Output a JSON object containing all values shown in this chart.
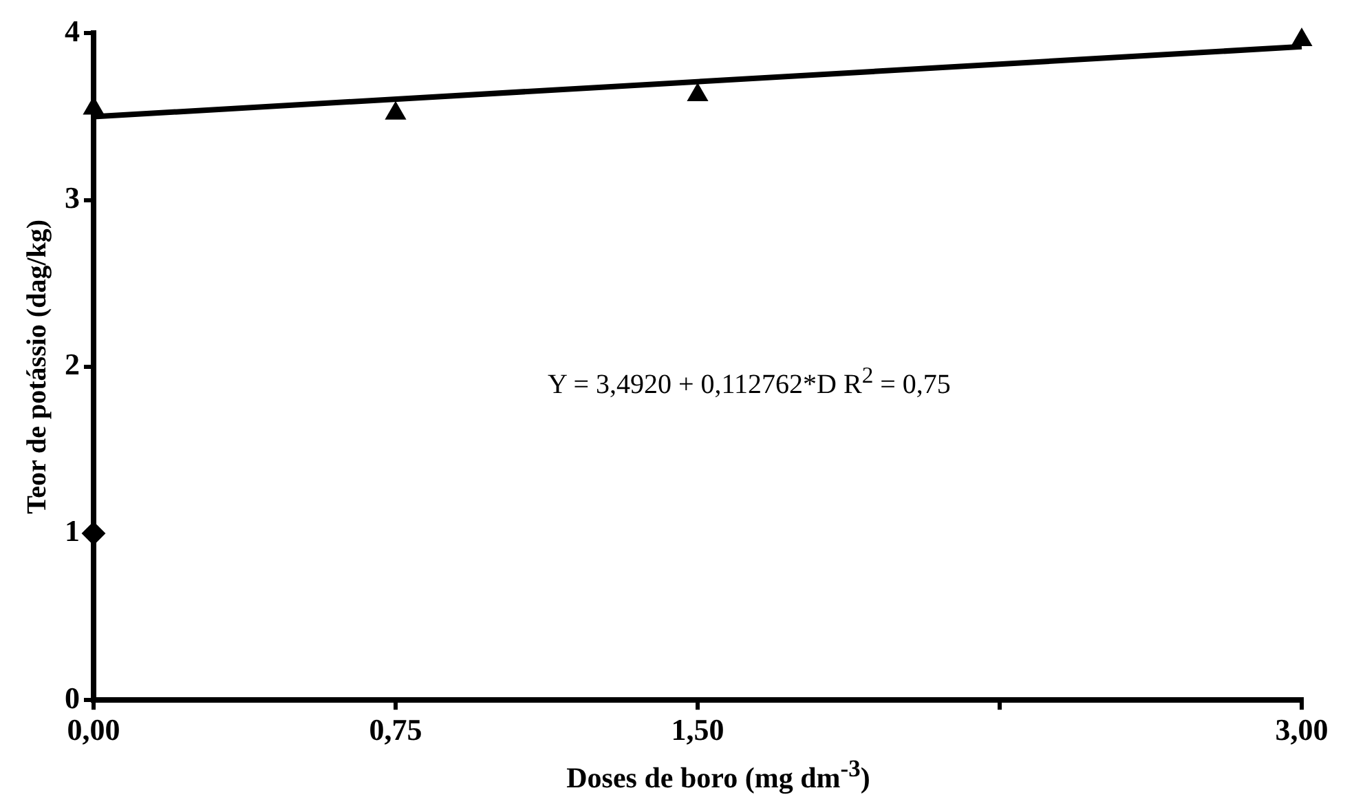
{
  "chart_data": {
    "type": "scatter",
    "xlabel": "Doses de boro (mg dm$^{-3}$)",
    "ylabel": "Teor de potássio (dag/kg)",
    "annotations": [
      "Y = 3,4920 + 0,112762*D R$^{2}$ = 0,75"
    ],
    "xlim": [
      0,
      3
    ],
    "xticks": [
      {
        "value": 0,
        "label": "0,00"
      },
      {
        "value": 0.75,
        "label": "0,75"
      },
      {
        "value": 1.5,
        "label": "1,50"
      },
      {
        "value": 2.25,
        "label": null
      },
      {
        "value": 3,
        "label": "3,00"
      }
    ],
    "ylim": [
      0,
      4
    ],
    "yticks": [
      0,
      1,
      2,
      3,
      4
    ],
    "grid": false,
    "legend": false,
    "series": [
      {
        "type": "scatter",
        "color": "#000000",
        "marker": "triangle",
        "x": [
          0,
          0.75,
          1.5,
          3
        ],
        "values": [
          3.55,
          3.52,
          3.63,
          3.96
        ]
      },
      {
        "type": "scatter",
        "color": "#000000",
        "marker": "diamond",
        "x": [
          0
        ],
        "values": [
          1
        ]
      },
      {
        "type": "line",
        "color": "#000000",
        "marker": "none",
        "line_style": "solid",
        "x": [
          0,
          3
        ],
        "values": [
          3.5,
          3.92
        ]
      }
    ]
  }
}
